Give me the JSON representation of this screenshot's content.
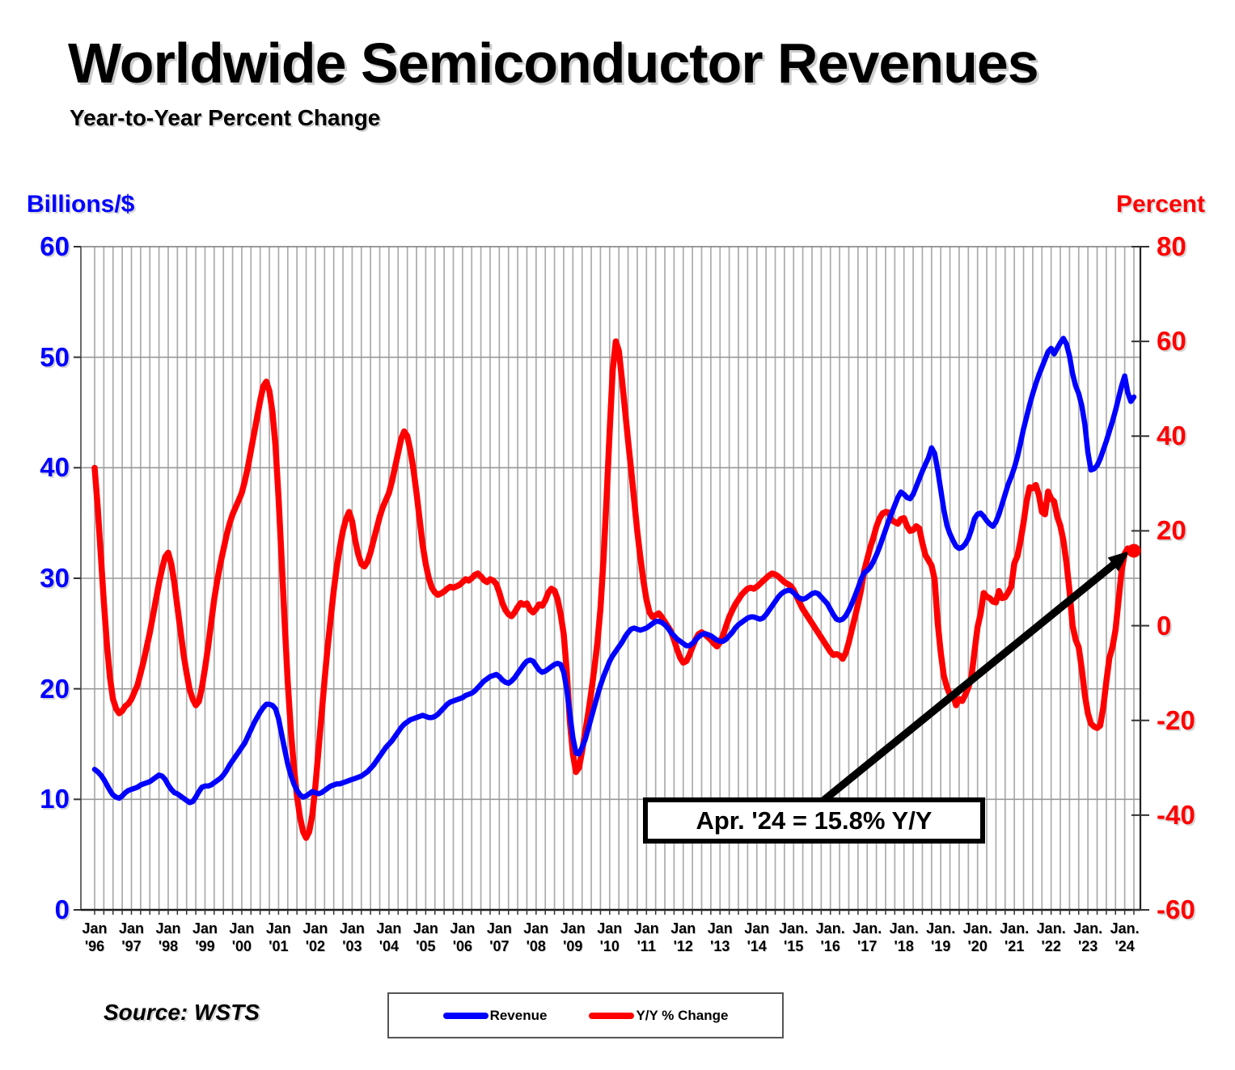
{
  "title": "Worldwide Semiconductor Revenues",
  "subtitle": "Year-to-Year Percent Change",
  "left_axis": {
    "header": "Billions/$",
    "color": "#0000ff",
    "ticks": [
      "60",
      "50",
      "40",
      "30",
      "20",
      "10",
      "0"
    ]
  },
  "right_axis": {
    "header": "Percent",
    "color": "#ff0000",
    "ticks": [
      "80",
      "60",
      "40",
      "20",
      "0",
      "-20",
      "-40",
      "-60"
    ]
  },
  "annotation": {
    "text": "Apr. '24 = 15.8% Y/Y"
  },
  "legend": {
    "items": [
      {
        "label": "Revenue",
        "color": "#0000ff"
      },
      {
        "label": "Y/Y % Change",
        "color": "#ff0000"
      }
    ]
  },
  "source": "Source: WSTS",
  "chart_data": {
    "type": "line",
    "title": "Worldwide Semiconductor Revenues",
    "subtitle": "Year-to-Year Percent Change",
    "frequency": "monthly",
    "x_start": "1996-01",
    "x_end": "2024-04",
    "left_ylabel": "Billions/$",
    "right_ylabel": "Percent",
    "left_ylim": [
      0,
      60
    ],
    "right_ylim": [
      -60,
      80
    ],
    "grid": {
      "vertical_every_months": 3,
      "horizontal_every_left_units": 10
    },
    "x_tick_labels": [
      {
        "m": "Jan",
        "y": "'96"
      },
      {
        "m": "Jan",
        "y": "'97"
      },
      {
        "m": "Jan",
        "y": "'98"
      },
      {
        "m": "Jan",
        "y": "'99"
      },
      {
        "m": "Jan",
        "y": "'00"
      },
      {
        "m": "Jan",
        "y": "'01"
      },
      {
        "m": "Jan",
        "y": "'02"
      },
      {
        "m": "Jan",
        "y": "'03"
      },
      {
        "m": "Jan",
        "y": "'04"
      },
      {
        "m": "Jan",
        "y": "'05"
      },
      {
        "m": "Jan",
        "y": "'06"
      },
      {
        "m": "Jan",
        "y": "'07"
      },
      {
        "m": "Jan",
        "y": "'08"
      },
      {
        "m": "Jan",
        "y": "'09"
      },
      {
        "m": "Jan",
        "y": "'10"
      },
      {
        "m": "Jan",
        "y": "'11"
      },
      {
        "m": "Jan",
        "y": "'12"
      },
      {
        "m": "Jan",
        "y": "'13"
      },
      {
        "m": "Jan",
        "y": "'14"
      },
      {
        "m": "Jan.",
        "y": "'15"
      },
      {
        "m": "Jan.",
        "y": "'16"
      },
      {
        "m": "Jan.",
        "y": "'17"
      },
      {
        "m": "Jan.",
        "y": "'18"
      },
      {
        "m": "Jan.",
        "y": "'19"
      },
      {
        "m": "Jan.",
        "y": "'20"
      },
      {
        "m": "Jan.",
        "y": "'21"
      },
      {
        "m": "Jan.",
        "y": "'22"
      },
      {
        "m": "Jan.",
        "y": "'23"
      },
      {
        "m": "Jan.",
        "y": "'24"
      }
    ],
    "series": [
      {
        "name": "Revenue",
        "axis": "left",
        "color": "#0000ff",
        "values": [
          12.7,
          12.5,
          12.2,
          11.8,
          11.3,
          10.8,
          10.4,
          10.2,
          10.1,
          10.3,
          10.6,
          10.8,
          10.9,
          11.0,
          11.1,
          11.3,
          11.4,
          11.5,
          11.6,
          11.8,
          12.0,
          12.2,
          12.1,
          11.8,
          11.3,
          10.9,
          10.6,
          10.5,
          10.3,
          10.1,
          9.9,
          9.7,
          9.8,
          10.2,
          10.7,
          11.1,
          11.2,
          11.2,
          11.3,
          11.5,
          11.7,
          11.9,
          12.2,
          12.6,
          13.1,
          13.5,
          13.9,
          14.3,
          14.7,
          15.1,
          15.7,
          16.3,
          16.9,
          17.4,
          17.9,
          18.3,
          18.6,
          18.6,
          18.5,
          18.2,
          17.3,
          15.9,
          14.5,
          13.2,
          12.2,
          11.4,
          10.8,
          10.4,
          10.2,
          10.3,
          10.5,
          10.7,
          10.6,
          10.5,
          10.6,
          10.8,
          11.0,
          11.2,
          11.3,
          11.4,
          11.4,
          11.5,
          11.6,
          11.7,
          11.8,
          11.9,
          12.0,
          12.1,
          12.3,
          12.5,
          12.8,
          13.1,
          13.5,
          13.9,
          14.3,
          14.7,
          15.0,
          15.3,
          15.7,
          16.1,
          16.5,
          16.8,
          17.0,
          17.2,
          17.3,
          17.4,
          17.5,
          17.6,
          17.5,
          17.4,
          17.4,
          17.5,
          17.7,
          18.0,
          18.3,
          18.6,
          18.8,
          18.9,
          19.0,
          19.1,
          19.2,
          19.4,
          19.5,
          19.6,
          19.8,
          20.1,
          20.4,
          20.7,
          20.9,
          21.1,
          21.2,
          21.3,
          21.1,
          20.8,
          20.6,
          20.5,
          20.7,
          21.0,
          21.4,
          21.8,
          22.2,
          22.5,
          22.6,
          22.5,
          22.1,
          21.7,
          21.5,
          21.6,
          21.8,
          22.0,
          22.2,
          22.3,
          22.2,
          21.5,
          20.0,
          17.8,
          15.6,
          14.2,
          14.1,
          14.7,
          15.4,
          16.4,
          17.4,
          18.4,
          19.4,
          20.3,
          21.1,
          21.8,
          22.5,
          23.0,
          23.4,
          23.8,
          24.2,
          24.7,
          25.1,
          25.4,
          25.5,
          25.4,
          25.3,
          25.4,
          25.5,
          25.7,
          25.9,
          26.1,
          26.1,
          26.0,
          25.8,
          25.5,
          25.1,
          24.8,
          24.5,
          24.3,
          24.1,
          23.9,
          23.9,
          24.1,
          24.4,
          24.7,
          24.9,
          25.0,
          24.9,
          24.8,
          24.6,
          24.4,
          24.3,
          24.3,
          24.5,
          24.8,
          25.1,
          25.5,
          25.8,
          26.0,
          26.2,
          26.4,
          26.5,
          26.5,
          26.4,
          26.3,
          26.4,
          26.7,
          27.1,
          27.5,
          27.9,
          28.3,
          28.6,
          28.8,
          28.9,
          28.9,
          28.7,
          28.4,
          28.2,
          28.1,
          28.2,
          28.4,
          28.6,
          28.7,
          28.6,
          28.3,
          28.0,
          27.7,
          27.2,
          26.7,
          26.3,
          26.2,
          26.3,
          26.6,
          27.1,
          27.7,
          28.4,
          29.1,
          29.9,
          30.5,
          30.7,
          31.0,
          31.5,
          32.1,
          32.8,
          33.6,
          34.4,
          35.2,
          35.9,
          36.6,
          37.3,
          37.8,
          37.6,
          37.3,
          37.2,
          37.6,
          38.3,
          39.0,
          39.7,
          40.3,
          40.9,
          41.8,
          41.3,
          39.8,
          38.0,
          36.2,
          34.8,
          34.0,
          33.4,
          32.9,
          32.7,
          32.8,
          33.1,
          33.6,
          34.4,
          35.4,
          35.8,
          35.9,
          35.6,
          35.2,
          34.9,
          34.7,
          35.1,
          35.8,
          36.7,
          37.6,
          38.5,
          39.2,
          40.0,
          41.0,
          42.2,
          43.5,
          44.6,
          45.7,
          46.7,
          47.6,
          48.4,
          49.1,
          49.8,
          50.5,
          50.8,
          50.3,
          50.8,
          51.3,
          51.7,
          51.2,
          50.1,
          48.5,
          47.4,
          46.7,
          45.6,
          43.9,
          41.4,
          39.8,
          39.9,
          40.2,
          40.8,
          41.6,
          42.4,
          43.3,
          44.2,
          45.2,
          46.3,
          47.4,
          48.3,
          46.8,
          46.0,
          46.4
        ]
      },
      {
        "name": "Y/Y % Change",
        "axis": "right",
        "color": "#ff0000",
        "values": [
          33.3,
          25.0,
          15.0,
          5.0,
          -4.0,
          -11.0,
          -15.5,
          -17.5,
          -18.5,
          -18.0,
          -17.0,
          -16.5,
          -15.5,
          -14.0,
          -12.5,
          -10.0,
          -7.5,
          -4.5,
          -1.5,
          2.0,
          5.5,
          9.0,
          12.0,
          14.5,
          15.4,
          13.0,
          9.0,
          4.0,
          -1.0,
          -6.0,
          -10.0,
          -13.5,
          -15.5,
          -16.8,
          -16.0,
          -13.0,
          -9.0,
          -4.5,
          0.5,
          5.5,
          9.5,
          13.0,
          16.0,
          19.0,
          21.5,
          23.5,
          25.0,
          26.5,
          28.0,
          30.5,
          33.5,
          37.0,
          40.5,
          44.0,
          47.5,
          50.5,
          51.5,
          49.5,
          45.0,
          38.0,
          27.0,
          14.0,
          0.5,
          -12.0,
          -22.0,
          -30.0,
          -36.0,
          -40.5,
          -43.5,
          -44.8,
          -43.5,
          -40.0,
          -34.0,
          -26.5,
          -19.0,
          -11.5,
          -4.5,
          1.5,
          7.5,
          12.5,
          16.5,
          20.0,
          22.5,
          24.0,
          22.0,
          18.0,
          15.0,
          13.0,
          12.5,
          13.5,
          15.5,
          18.0,
          20.5,
          23.0,
          25.0,
          26.5,
          28.0,
          30.5,
          33.5,
          36.5,
          39.5,
          41.0,
          40.0,
          37.0,
          33.0,
          28.0,
          22.5,
          17.0,
          13.0,
          10.0,
          8.0,
          7.0,
          6.5,
          6.8,
          7.2,
          7.8,
          8.2,
          8.0,
          8.3,
          8.6,
          9.2,
          9.8,
          9.5,
          10.0,
          10.7,
          11.0,
          10.4,
          9.6,
          9.2,
          9.8,
          9.5,
          8.8,
          7.0,
          4.8,
          3.3,
          2.4,
          2.0,
          2.8,
          3.9,
          4.8,
          4.4,
          4.7,
          3.4,
          2.8,
          3.5,
          4.5,
          4.2,
          5.3,
          7.0,
          7.8,
          7.4,
          5.6,
          2.4,
          -1.8,
          -9.5,
          -20.0,
          -27.0,
          -30.9,
          -30.0,
          -26.5,
          -22.5,
          -18.5,
          -14.0,
          -9.0,
          -3.5,
          3.5,
          14.0,
          27.0,
          41.0,
          54.0,
          60.0,
          58.0,
          52.0,
          45.5,
          39.0,
          33.0,
          26.5,
          20.0,
          14.5,
          9.5,
          5.5,
          2.8,
          1.8,
          2.2,
          2.6,
          1.8,
          0.8,
          -0.2,
          -1.2,
          -3.0,
          -5.0,
          -6.8,
          -7.8,
          -7.5,
          -6.2,
          -4.5,
          -3.0,
          -1.8,
          -1.4,
          -1.8,
          -2.4,
          -3.0,
          -3.8,
          -4.4,
          -3.5,
          -2.0,
          0.0,
          1.8,
          3.2,
          4.5,
          5.5,
          6.5,
          7.2,
          7.8,
          8.0,
          7.8,
          8.2,
          8.8,
          9.4,
          10.0,
          10.6,
          11.0,
          10.8,
          10.4,
          9.8,
          9.2,
          8.8,
          8.4,
          7.5,
          6.2,
          4.8,
          3.5,
          2.5,
          1.5,
          0.5,
          -0.5,
          -1.5,
          -2.5,
          -3.5,
          -4.5,
          -5.5,
          -6.2,
          -6.0,
          -6.3,
          -7.0,
          -5.8,
          -3.5,
          -0.8,
          1.8,
          4.5,
          7.5,
          11.5,
          14.0,
          16.5,
          18.5,
          20.9,
          22.6,
          23.7,
          24.0,
          23.9,
          22.2,
          21.9,
          21.5,
          22.5,
          22.7,
          21.0,
          20.0,
          20.2,
          21.0,
          20.5,
          17.4,
          14.9,
          13.8,
          12.7,
          9.8,
          0.6,
          -5.7,
          -10.6,
          -13.0,
          -14.6,
          -14.6,
          -16.8,
          -15.5,
          -15.9,
          -14.6,
          -13.1,
          -10.8,
          -5.5,
          -0.3,
          2.5,
          6.9,
          6.1,
          5.8,
          5.1,
          4.9,
          7.3,
          5.8,
          6.0,
          7.0,
          8.3,
          13.2,
          14.7,
          17.8,
          21.7,
          26.2,
          29.2,
          29.0,
          29.7,
          27.6,
          24.0,
          23.5,
          28.3,
          26.8,
          26.2,
          23.0,
          21.1,
          18.0,
          13.3,
          7.3,
          0.0,
          -3.0,
          -4.6,
          -9.2,
          -14.7,
          -18.5,
          -20.7,
          -21.3,
          -21.6,
          -21.1,
          -17.3,
          -11.8,
          -6.8,
          -4.5,
          -0.9,
          5.3,
          11.6,
          15.2,
          16.3,
          15.2,
          15.8
        ]
      }
    ],
    "annotation": {
      "text": "Apr. '24 = 15.8% Y/Y",
      "points_to": {
        "month": "2024-04",
        "value": 15.8
      }
    }
  }
}
